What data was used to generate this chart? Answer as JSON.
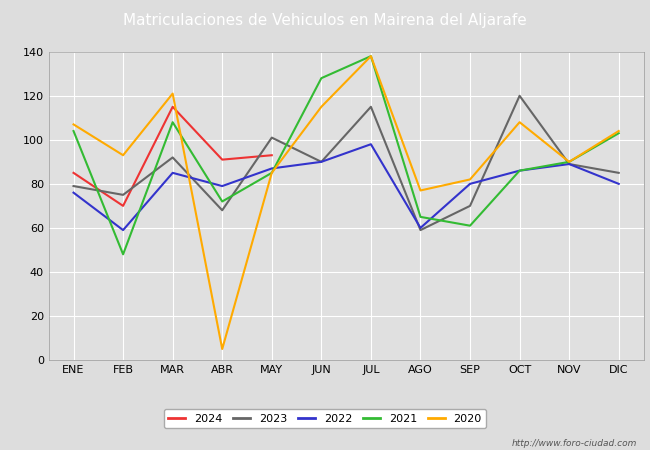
{
  "title": "Matriculaciones de Vehiculos en Mairena del Aljarafe",
  "months": [
    "ENE",
    "FEB",
    "MAR",
    "ABR",
    "MAY",
    "JUN",
    "JUL",
    "AGO",
    "SEP",
    "OCT",
    "NOV",
    "DIC"
  ],
  "series": {
    "2024": [
      85,
      70,
      115,
      91,
      93,
      null,
      null,
      null,
      null,
      null,
      null,
      null
    ],
    "2023": [
      79,
      75,
      92,
      68,
      101,
      90,
      115,
      59,
      70,
      120,
      89,
      85
    ],
    "2022": [
      76,
      59,
      85,
      79,
      87,
      90,
      98,
      60,
      80,
      86,
      89,
      80
    ],
    "2021": [
      104,
      48,
      108,
      72,
      85,
      128,
      138,
      65,
      61,
      86,
      90,
      103
    ],
    "2020": [
      107,
      93,
      121,
      5,
      85,
      115,
      138,
      77,
      82,
      108,
      90,
      104
    ]
  },
  "colors": {
    "2024": "#ee3333",
    "2023": "#666666",
    "2022": "#3333cc",
    "2021": "#33bb33",
    "2020": "#ffaa00"
  },
  "ylim": [
    0,
    140
  ],
  "yticks": [
    0,
    20,
    40,
    60,
    80,
    100,
    120,
    140
  ],
  "title_fontsize": 11,
  "axis_fontsize": 8,
  "legend_fontsize": 8,
  "background_color": "#dddddd",
  "plot_bg_color": "#e0e0e0",
  "header_color": "#5b9bd5",
  "watermark": "http://www.foro-ciudad.com"
}
